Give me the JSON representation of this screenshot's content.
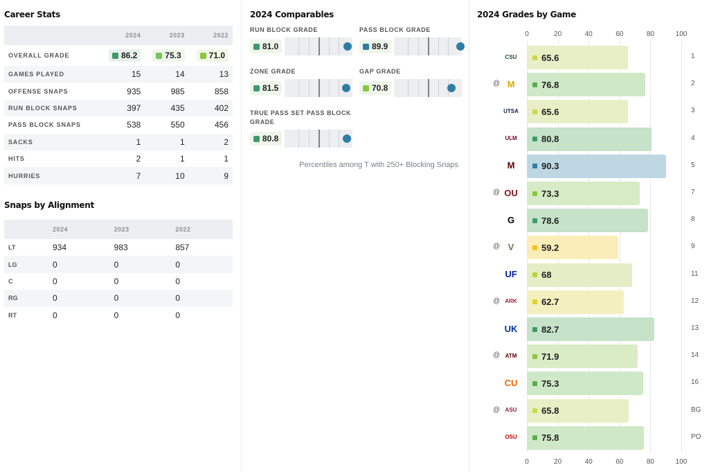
{
  "career": {
    "title": "Career Stats",
    "years": [
      "2024",
      "2023",
      "2022"
    ],
    "overall_label": "OVERALL GRADE",
    "overall": [
      {
        "v": "86.2",
        "color": "#3f9a6b",
        "bg": "#e6f1ec"
      },
      {
        "v": "75.3",
        "color": "#78c25a",
        "bg": "#eef6ea"
      },
      {
        "v": "71.0",
        "color": "#8cc63f",
        "bg": "#f1f6e6"
      }
    ],
    "rows": [
      {
        "label": "GAMES PLAYED",
        "vals": [
          "15",
          "14",
          "13"
        ]
      },
      {
        "label": "OFFENSE SNAPS",
        "vals": [
          "935",
          "985",
          "858"
        ]
      },
      {
        "label": "RUN BLOCK SNAPS",
        "vals": [
          "397",
          "435",
          "402"
        ]
      },
      {
        "label": "PASS BLOCK SNAPS",
        "vals": [
          "538",
          "550",
          "456"
        ]
      },
      {
        "label": "SACKS",
        "vals": [
          "1",
          "1",
          "2"
        ]
      },
      {
        "label": "HITS",
        "vals": [
          "2",
          "1",
          "1"
        ]
      },
      {
        "label": "HURRIES",
        "vals": [
          "7",
          "10",
          "9"
        ]
      }
    ]
  },
  "alignment": {
    "title": "Snaps by Alignment",
    "years": [
      "2024",
      "2023",
      "2022"
    ],
    "rows": [
      {
        "label": "LT",
        "vals": [
          "934",
          "983",
          "857"
        ]
      },
      {
        "label": "LG",
        "vals": [
          "0",
          "0",
          "0"
        ]
      },
      {
        "label": "C",
        "vals": [
          "0",
          "0",
          "0"
        ]
      },
      {
        "label": "RG",
        "vals": [
          "0",
          "0",
          "0"
        ]
      },
      {
        "label": "RT",
        "vals": [
          "0",
          "0",
          "0"
        ]
      }
    ]
  },
  "comparables": {
    "title": "2024 Comparables",
    "note": "Percentiles among T with 250+ Blocking Snaps",
    "items": [
      {
        "label": "RUN BLOCK GRADE",
        "value": "81.0",
        "color": "#3f9a6b",
        "percentile": 0.93
      },
      {
        "label": "PASS BLOCK GRADE",
        "value": "89.9",
        "color": "#2e7ea4",
        "percentile": 0.98
      },
      {
        "label": "ZONE GRADE",
        "value": "81.5",
        "color": "#3f9a6b",
        "percentile": 0.91
      },
      {
        "label": "GAP GRADE",
        "value": "70.8",
        "color": "#8cc63f",
        "percentile": 0.85
      },
      {
        "label": "TRUE PASS SET PASS BLOCK GRADE",
        "value": "80.8",
        "color": "#3f9a6b",
        "percentile": 0.92
      }
    ]
  },
  "games": {
    "title": "2024 Grades by Game",
    "ticks": [
      "0",
      "20",
      "40",
      "60",
      "80",
      "100"
    ],
    "rows": [
      {
        "away": "",
        "logo": "CSU",
        "logo_color": "#1e4d2b",
        "grade": "65.6",
        "value": 65.6,
        "color": "#c9d94a",
        "bg": "#e8efc6",
        "game": "1"
      },
      {
        "away": "@",
        "logo": "M",
        "logo_color": "#d9a800",
        "grade": "76.8",
        "value": 76.8,
        "color": "#5aad4e",
        "bg": "#cfe8c7",
        "game": "2"
      },
      {
        "away": "",
        "logo": "UTSA",
        "logo_color": "#0c2340",
        "grade": "65.6",
        "value": 65.6,
        "color": "#c9d94a",
        "bg": "#e8efc6",
        "game": "3"
      },
      {
        "away": "",
        "logo": "ULM",
        "logo_color": "#800029",
        "grade": "80.8",
        "value": 80.8,
        "color": "#3f9a6b",
        "bg": "#c6e2c9",
        "game": "4"
      },
      {
        "away": "",
        "logo": "M",
        "logo_color": "#660000",
        "grade": "90.3",
        "value": 90.3,
        "color": "#2e7ea4",
        "bg": "#bdd8e3",
        "game": "5"
      },
      {
        "away": "@",
        "logo": "OU",
        "logo_color": "#841617",
        "grade": "73.3",
        "value": 73.3,
        "color": "#8cc63f",
        "bg": "#d6ebc6",
        "game": "7"
      },
      {
        "away": "",
        "logo": "G",
        "logo_color": "#000000",
        "grade": "78.6",
        "value": 78.6,
        "color": "#3f9a6b",
        "bg": "#c6e2c9",
        "game": "8"
      },
      {
        "away": "@",
        "logo": "V",
        "logo_color": "#866d4b",
        "grade": "59.2",
        "value": 59.2,
        "color": "#f2c40f",
        "bg": "#fbedb8",
        "game": "9"
      },
      {
        "away": "",
        "logo": "UF",
        "logo_color": "#0021a5",
        "grade": "68",
        "value": 68,
        "color": "#b5d43f",
        "bg": "#e4eec6",
        "game": "11"
      },
      {
        "away": "@",
        "logo": "ARK",
        "logo_color": "#9d2235",
        "grade": "62.7",
        "value": 62.7,
        "color": "#e0d12f",
        "bg": "#f4efbe",
        "game": "12"
      },
      {
        "away": "",
        "logo": "UK",
        "logo_color": "#0033a0",
        "grade": "82.7",
        "value": 82.7,
        "color": "#3f9a6b",
        "bg": "#c6e2c9",
        "game": "13"
      },
      {
        "away": "@",
        "logo": "ATM",
        "logo_color": "#500000",
        "grade": "71.9",
        "value": 71.9,
        "color": "#8cc63f",
        "bg": "#d9ecc6",
        "game": "14"
      },
      {
        "away": "",
        "logo": "CU",
        "logo_color": "#f56600",
        "grade": "75.3",
        "value": 75.3,
        "color": "#5aad4e",
        "bg": "#cfe8c7",
        "game": "16"
      },
      {
        "away": "@",
        "logo": "ASU",
        "logo_color": "#8c1d40",
        "grade": "65.8",
        "value": 65.8,
        "color": "#c9d94a",
        "bg": "#e8efc6",
        "game": "BG"
      },
      {
        "away": "",
        "logo": "OSU",
        "logo_color": "#bb0000",
        "grade": "75.8",
        "value": 75.8,
        "color": "#5aad4e",
        "bg": "#cfe8c7",
        "game": "PO"
      }
    ]
  }
}
